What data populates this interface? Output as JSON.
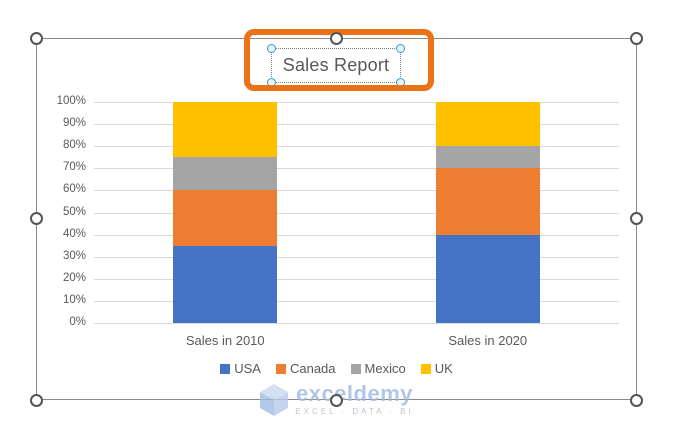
{
  "chart": {
    "title": "Sales Report"
  },
  "chart_data": {
    "type": "bar",
    "subtype": "100-percent-stacked-column",
    "title": "Sales Report",
    "categories": [
      "Sales in 2010",
      "Sales in 2020"
    ],
    "series": [
      {
        "name": "USA",
        "color": "#4472C4",
        "values": [
          35,
          40
        ]
      },
      {
        "name": "Canada",
        "color": "#ED7D31",
        "values": [
          25,
          30
        ]
      },
      {
        "name": "Mexico",
        "color": "#A5A5A5",
        "values": [
          15,
          10
        ]
      },
      {
        "name": "UK",
        "color": "#FFC000",
        "values": [
          25,
          20
        ]
      }
    ],
    "xlabel": "",
    "ylabel": "",
    "ylim": [
      0,
      100
    ],
    "yticks": [
      "0%",
      "10%",
      "20%",
      "30%",
      "40%",
      "50%",
      "60%",
      "70%",
      "80%",
      "90%",
      "100%"
    ],
    "grid": true,
    "legend_position": "bottom"
  },
  "colors": {
    "annotation_orange": "#ED7117",
    "grid_line": "#D9D9D9",
    "chart_text": "#595959",
    "chart_border": "#8A8A8A",
    "selection_handle_ring": "#545454",
    "title_handle_blue": "#2E9BD8",
    "watermark_blue": "#9DB9E0"
  },
  "watermark": {
    "brand": "exceldemy",
    "tagline": "EXCEL · DATA · BI"
  }
}
